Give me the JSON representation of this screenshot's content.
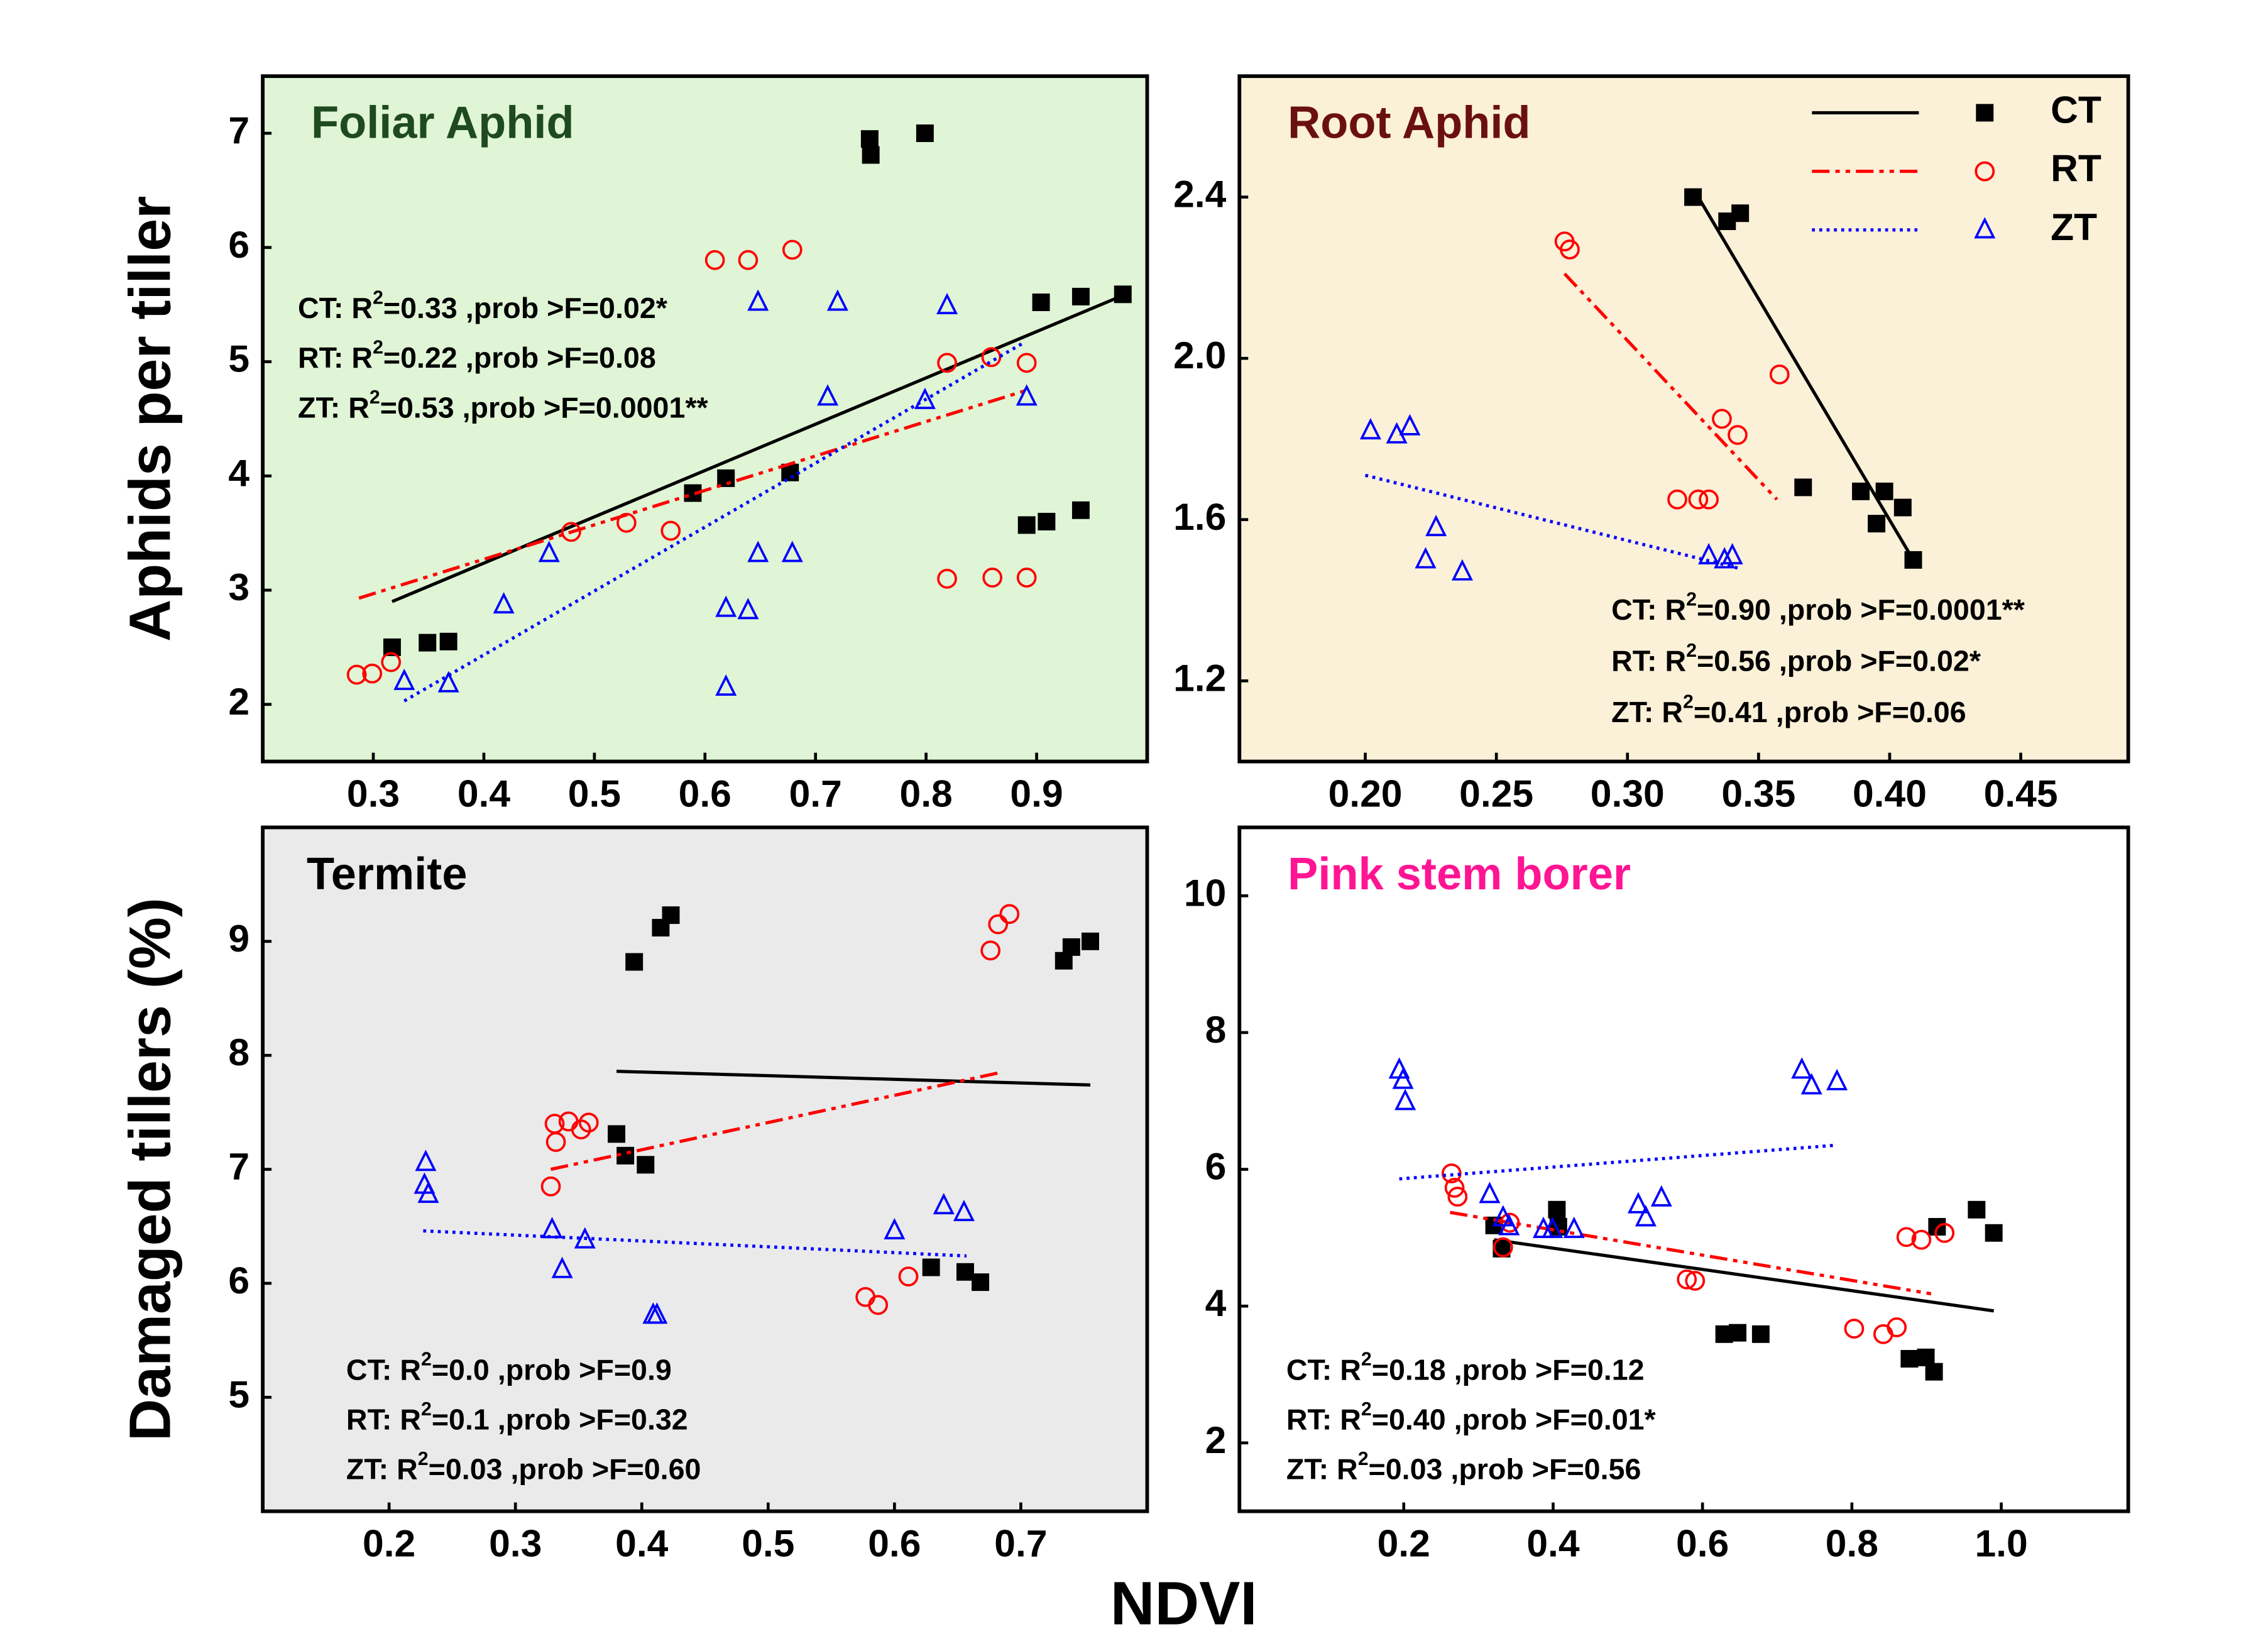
{
  "xlabel": "NDVI",
  "chart_data": [
    {
      "type": "scatter",
      "title": "Foliar Aphid",
      "title_color": "#1f4a1f",
      "background": "#dff5d5",
      "ylabel": "Aphids per tiller",
      "xlim": [
        0.2,
        1.0
      ],
      "xticks": [
        0.3,
        0.4,
        0.5,
        0.6,
        0.7,
        0.8,
        0.9
      ],
      "ylim": [
        1.5,
        7.5
      ],
      "yticks": [
        2,
        3,
        4,
        5,
        6,
        7
      ],
      "series": [
        {
          "name": "CT",
          "color": "#000000",
          "marker": "square",
          "dash": "solid",
          "x": [
            0.317,
            0.349,
            0.368,
            0.589,
            0.619,
            0.677,
            0.749,
            0.75,
            0.799,
            0.891,
            0.909,
            0.94,
            0.904,
            0.94,
            0.978
          ],
          "y": [
            2.5,
            2.54,
            2.55,
            3.85,
            3.98,
            4.03,
            6.95,
            6.81,
            7.0,
            3.57,
            3.6,
            3.7,
            5.52,
            5.57,
            5.59
          ],
          "fit": {
            "x": [
              0.317,
              0.978
            ],
            "y": [
              2.9,
              5.58
            ]
          }
        },
        {
          "name": "RT",
          "color": "#ff0000",
          "marker": "circle",
          "dash": "dashdot",
          "x": [
            0.285,
            0.299,
            0.316,
            0.479,
            0.529,
            0.569,
            0.609,
            0.639,
            0.679,
            0.819,
            0.859,
            0.891,
            0.819,
            0.86,
            0.891
          ],
          "y": [
            2.26,
            2.27,
            2.37,
            3.51,
            3.59,
            3.52,
            5.89,
            5.89,
            5.98,
            4.99,
            5.04,
            4.99,
            3.1,
            3.11,
            3.11
          ],
          "fit": {
            "x": [
              0.287,
              0.891
            ],
            "y": [
              2.93,
              4.75
            ]
          }
        },
        {
          "name": "ZT",
          "color": "#0000ff",
          "marker": "triangle",
          "dash": "dot",
          "x": [
            0.328,
            0.368,
            0.418,
            0.459,
            0.648,
            0.72,
            0.819,
            0.619,
            0.639,
            0.648,
            0.679,
            0.619,
            0.711,
            0.799,
            0.891
          ],
          "y": [
            2.2,
            2.18,
            2.87,
            3.32,
            5.52,
            5.52,
            5.49,
            2.84,
            2.82,
            3.32,
            3.32,
            2.15,
            4.69,
            4.66,
            4.69
          ],
          "fit": {
            "x": [
              0.328,
              0.889
            ],
            "y": [
              2.03,
              5.17
            ]
          }
        }
      ],
      "annotations": [
        {
          "before": "CT: R",
          "sup": "2",
          "after": "=0.33 ,prob >F=0.02*"
        },
        {
          "before": "RT: R",
          "sup": "2",
          "after": "=0.22 ,prob >F=0.08"
        },
        {
          "before": "ZT: R",
          "sup": "2",
          "after": "=0.53 ,prob >F=0.0001**"
        }
      ]
    },
    {
      "type": "scatter",
      "title": "Root Aphid",
      "title_color": "#6b1010",
      "background": "#fbf0d8",
      "legend": "upper right",
      "xlim": [
        0.152,
        0.491
      ],
      "xticks": [
        {
          "value": 0.2,
          "label": "0.20"
        },
        0.25,
        {
          "value": 0.3,
          "label": "0.30"
        },
        0.35,
        {
          "value": 0.4,
          "label": "0.40"
        },
        0.45
      ],
      "ylim": [
        1.0,
        2.7
      ],
      "yticks": [
        1.2,
        1.6,
        {
          "value": 2.0,
          "label": "2.0"
        },
        2.4
      ],
      "series": [
        {
          "name": "CT",
          "color": "#000000",
          "marker": "square",
          "dash": "solid",
          "x": [
            0.325,
            0.338,
            0.343,
            0.367,
            0.389,
            0.398,
            0.395,
            0.405,
            0.409
          ],
          "y": [
            2.4,
            2.34,
            2.36,
            1.68,
            1.67,
            1.67,
            1.59,
            1.63,
            1.5
          ],
          "fit": {
            "x": [
              0.327,
              0.409
            ],
            "y": [
              2.4,
              1.5
            ]
          }
        },
        {
          "name": "RT",
          "color": "#ff0000",
          "marker": "circle",
          "dash": "dashdot",
          "x": [
            0.276,
            0.278,
            0.358,
            0.336,
            0.342,
            0.319,
            0.327,
            0.331
          ],
          "y": [
            2.29,
            2.27,
            1.96,
            1.85,
            1.81,
            1.65,
            1.65,
            1.65
          ],
          "fit": {
            "x": [
              0.276,
              0.357
            ],
            "y": [
              2.21,
              1.65
            ]
          }
        },
        {
          "name": "ZT",
          "color": "#0000ff",
          "marker": "triangle",
          "dash": "dot",
          "x": [
            0.202,
            0.212,
            0.217,
            0.227,
            0.223,
            0.237,
            0.331,
            0.337,
            0.34
          ],
          "y": [
            1.82,
            1.81,
            1.83,
            1.58,
            1.5,
            1.47,
            1.51,
            1.5,
            1.51
          ],
          "fit": {
            "x": [
              0.2,
              0.342
            ],
            "y": [
              1.71,
              1.48
            ]
          }
        }
      ],
      "annotations": [
        {
          "before": "CT: R",
          "sup": "2",
          "after": "=0.90 ,prob >F=0.0001**"
        },
        {
          "before": "RT: R",
          "sup": "2",
          "after": "=0.56 ,prob >F=0.02*"
        },
        {
          "before": "ZT: R",
          "sup": "2",
          "after": "=0.41 ,prob >F=0.06"
        }
      ]
    },
    {
      "type": "scatter",
      "title": "Termite",
      "title_color": "#000000",
      "background": "#eaeaea",
      "ylabel": "Damaged tillers (%)",
      "xlim": [
        0.1,
        0.8
      ],
      "xticks": [
        0.2,
        0.3,
        0.4,
        0.5,
        0.6,
        0.7
      ],
      "ylim": [
        4,
        10
      ],
      "yticks": [
        5,
        6,
        7,
        8,
        9
      ],
      "series": [
        {
          "name": "CT",
          "color": "#000000",
          "marker": "square",
          "dash": "solid",
          "x": [
            0.394,
            0.415,
            0.423,
            0.38,
            0.387,
            0.403,
            0.629,
            0.656,
            0.668,
            0.734,
            0.74,
            0.755
          ],
          "y": [
            8.82,
            9.12,
            9.23,
            7.31,
            7.12,
            7.04,
            6.14,
            6.1,
            6.01,
            8.83,
            8.95,
            9.0
          ],
          "fit": {
            "x": [
              0.38,
              0.755
            ],
            "y": [
              7.86,
              7.74
            ]
          }
        },
        {
          "name": "RT",
          "color": "#ff0000",
          "marker": "circle",
          "dash": "dashdot",
          "x": [
            0.328,
            0.332,
            0.331,
            0.342,
            0.352,
            0.358,
            0.577,
            0.587,
            0.611,
            0.676,
            0.682,
            0.691
          ],
          "y": [
            6.85,
            7.24,
            7.4,
            7.42,
            7.35,
            7.41,
            5.88,
            5.81,
            6.06,
            8.92,
            9.15,
            9.24
          ],
          "fit": {
            "x": [
              0.328,
              0.684
            ],
            "y": [
              7.0,
              7.85
            ]
          }
        },
        {
          "name": "ZT",
          "color": "#0000ff",
          "marker": "triangle",
          "dash": "dot",
          "x": [
            0.229,
            0.228,
            0.231,
            0.329,
            0.355,
            0.337,
            0.409,
            0.412,
            0.6,
            0.639,
            0.655
          ],
          "y": [
            7.06,
            6.86,
            6.78,
            6.47,
            6.38,
            6.12,
            5.72,
            5.72,
            6.46,
            6.68,
            6.62
          ],
          "fit": {
            "x": [
              0.227,
              0.657
            ],
            "y": [
              6.46,
              6.24
            ]
          }
        }
      ],
      "annotations": [
        {
          "before": "CT: R",
          "sup": "2",
          "after": "=0.0 ,prob >F=0.9"
        },
        {
          "before": "RT: R",
          "sup": "2",
          "after": "=0.1 ,prob >F=0.32"
        },
        {
          "before": "ZT: R",
          "sup": "2",
          "after": "=0.03 ,prob >F=0.60"
        }
      ]
    },
    {
      "type": "scatter",
      "title": "Pink stem borer",
      "title_color": "#ff1493",
      "background": "#ffffff",
      "xlim": [
        -0.02,
        1.17
      ],
      "xticks": [
        0.2,
        0.4,
        0.6,
        0.8,
        {
          "value": 1.0,
          "label": "1.0"
        }
      ],
      "ylim": [
        1,
        11
      ],
      "yticks": [
        2,
        4,
        6,
        8,
        10
      ],
      "series": [
        {
          "name": "CT",
          "color": "#000000",
          "marker": "square",
          "dash": "solid",
          "x": [
            0.321,
            0.331,
            0.405,
            0.407,
            0.629,
            0.647,
            0.678,
            0.877,
            0.899,
            0.91,
            0.914,
            0.967,
            0.99
          ],
          "y": [
            5.18,
            4.84,
            5.41,
            5.16,
            3.59,
            3.61,
            3.59,
            3.23,
            3.25,
            3.04,
            5.16,
            5.41,
            5.07
          ],
          "fit": {
            "x": [
              0.321,
              0.99
            ],
            "y": [
              4.97,
              3.93
            ]
          }
        },
        {
          "name": "RT",
          "color": "#ff0000",
          "marker": "circle",
          "dash": "dashdot",
          "x": [
            0.264,
            0.268,
            0.272,
            0.333,
            0.342,
            0.579,
            0.59,
            0.803,
            0.842,
            0.86,
            0.873,
            0.893,
            0.924
          ],
          "y": [
            5.94,
            5.73,
            5.6,
            4.86,
            5.22,
            4.39,
            4.37,
            3.67,
            3.59,
            3.69,
            5.01,
            4.97,
            5.07
          ],
          "fit": {
            "x": [
              0.262,
              0.906
            ],
            "y": [
              5.37,
              4.18
            ]
          }
        },
        {
          "name": "ZT",
          "color": "#0000ff",
          "marker": "triangle",
          "dash": "dot",
          "x": [
            0.194,
            0.199,
            0.202,
            0.315,
            0.333,
            0.341,
            0.387,
            0.399,
            0.428,
            0.514,
            0.524,
            0.545,
            0.733,
            0.746,
            0.78
          ],
          "y": [
            7.45,
            7.3,
            6.99,
            5.63,
            5.29,
            5.16,
            5.12,
            5.12,
            5.12,
            5.48,
            5.29,
            5.58,
            7.45,
            7.22,
            7.28
          ],
          "fit": {
            "x": [
              0.194,
              0.776
            ],
            "y": [
              5.86,
              6.35
            ]
          }
        }
      ],
      "annotations": [
        {
          "before": "CT: R",
          "sup": "2",
          "after": "=0.18 ,prob >F=0.12"
        },
        {
          "before": "RT: R",
          "sup": "2",
          "after": "=0.40 ,prob >F=0.01*"
        },
        {
          "before": "ZT: R",
          "sup": "2",
          "after": "=0.03 ,prob >F=0.56"
        }
      ]
    }
  ]
}
